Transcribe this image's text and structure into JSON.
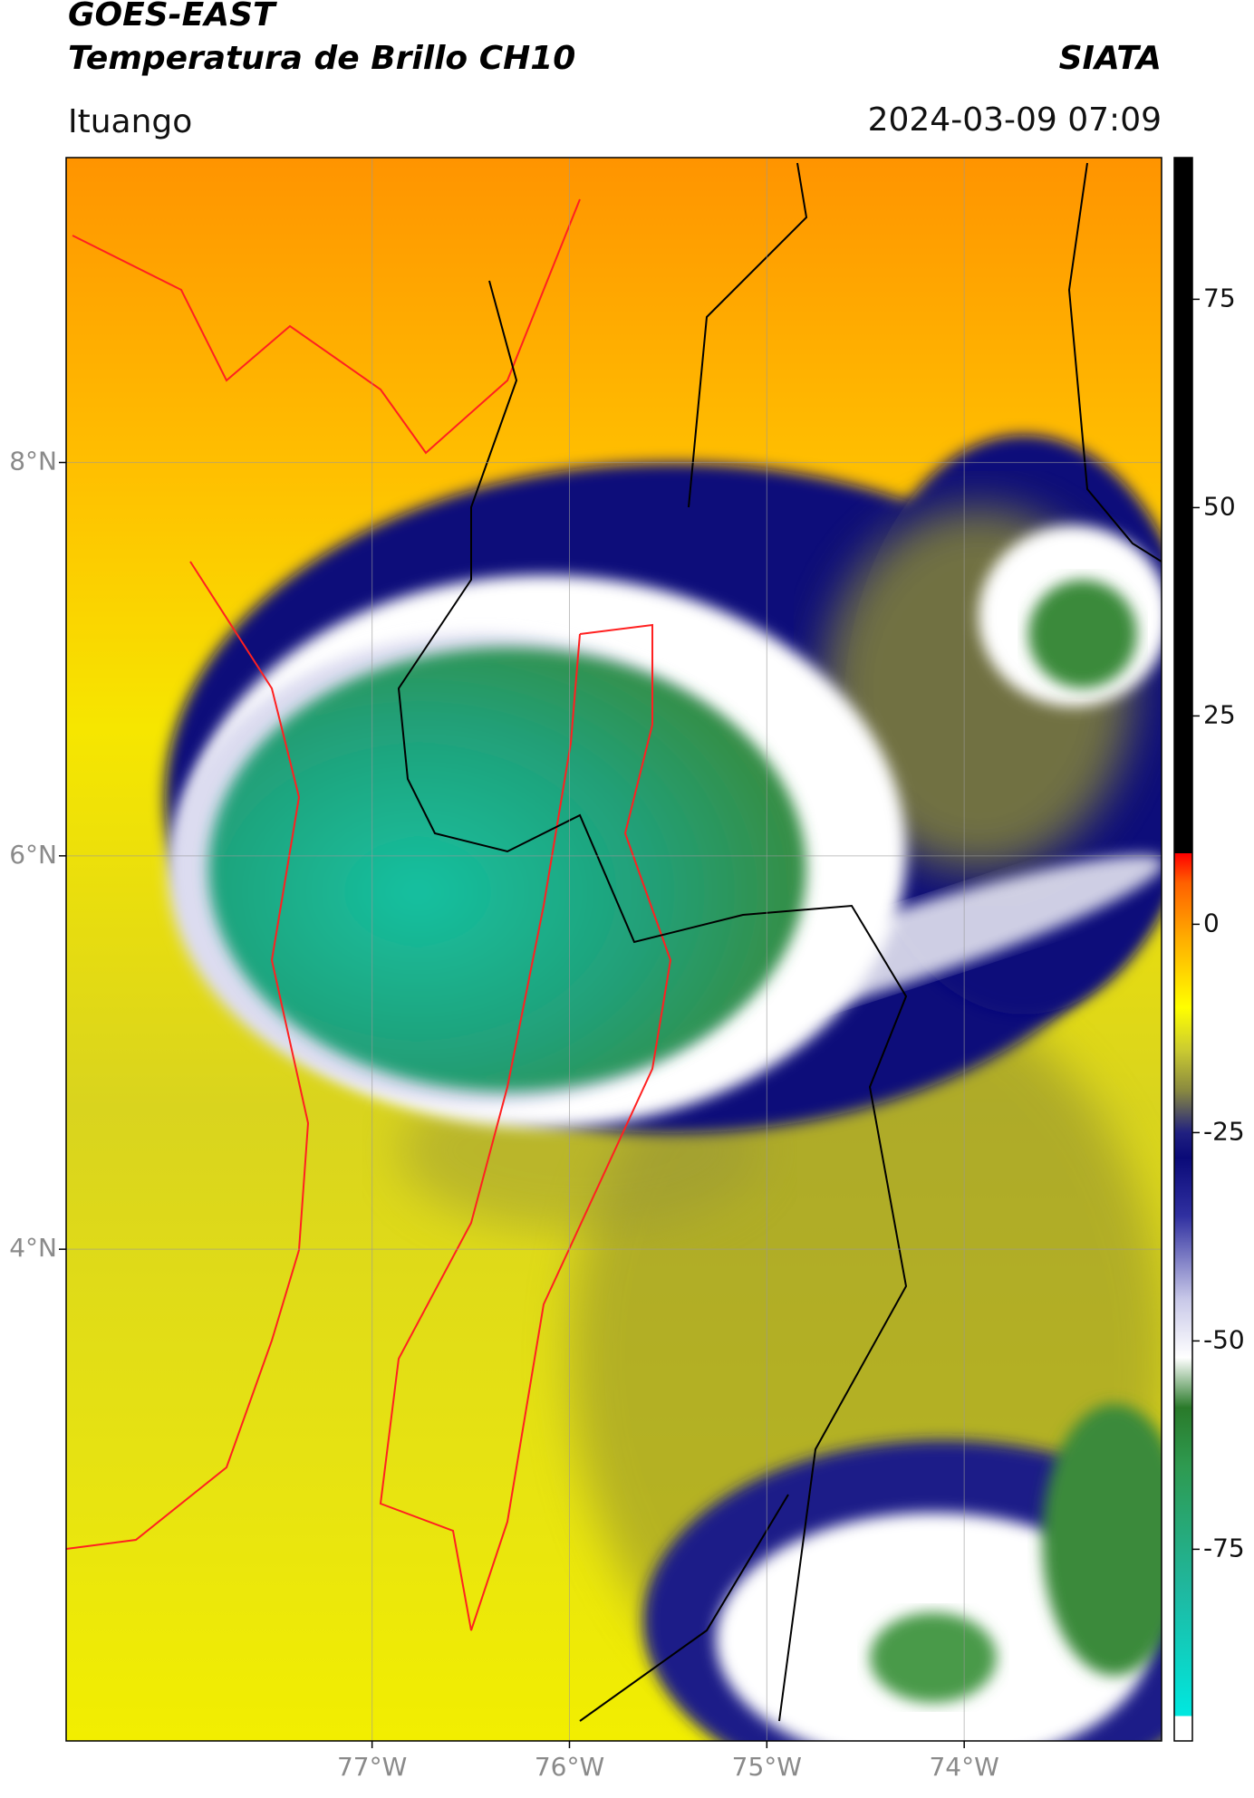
{
  "header": {
    "title": "GOES-EAST",
    "subtitle": "Temperatura de Brillo CH10",
    "source": "SIATA",
    "region": "Ituango",
    "datetime": "2024-03-09 07:09"
  },
  "map": {
    "xlim": [
      -78.55,
      -73.0
    ],
    "ylim": [
      1.5,
      9.55
    ],
    "xticks": [
      {
        "value": -77,
        "label": "77°W"
      },
      {
        "value": -76,
        "label": "76°W"
      },
      {
        "value": -75,
        "label": "75°W"
      },
      {
        "value": -74,
        "label": "74°W"
      }
    ],
    "yticks": [
      {
        "value": 8,
        "label": "8°N"
      },
      {
        "value": 6,
        "label": "6°N"
      },
      {
        "value": 4,
        "label": "4°N"
      }
    ],
    "grid": true
  },
  "colorbar": {
    "lim": [
      -98,
      92
    ],
    "ticks": [
      -75,
      -50,
      -25,
      0,
      25,
      50,
      75
    ],
    "stops": [
      {
        "value": -98,
        "color": "#ffffff"
      },
      {
        "value": -95,
        "color": "#ffffff"
      },
      {
        "value": -95,
        "color": "#00e8e0"
      },
      {
        "value": -80,
        "color": "#1fb8a0"
      },
      {
        "value": -65,
        "color": "#2e9a50"
      },
      {
        "value": -58,
        "color": "#2a7a2a"
      },
      {
        "value": -52,
        "color": "#ffffff"
      },
      {
        "value": -45,
        "color": "#c8c8e8"
      },
      {
        "value": -35,
        "color": "#3030a0"
      },
      {
        "value": -28,
        "color": "#0a0a78"
      },
      {
        "value": -25,
        "color": "#202080"
      },
      {
        "value": -20,
        "color": "#888840"
      },
      {
        "value": -15,
        "color": "#cccc30"
      },
      {
        "value": -10,
        "color": "#ffff00"
      },
      {
        "value": -2,
        "color": "#ffb000"
      },
      {
        "value": 5,
        "color": "#ff6000"
      },
      {
        "value": 8.5,
        "color": "#ff0000"
      },
      {
        "value": 8.5,
        "color": "#000000"
      },
      {
        "value": 92,
        "color": "#000000"
      }
    ]
  }
}
